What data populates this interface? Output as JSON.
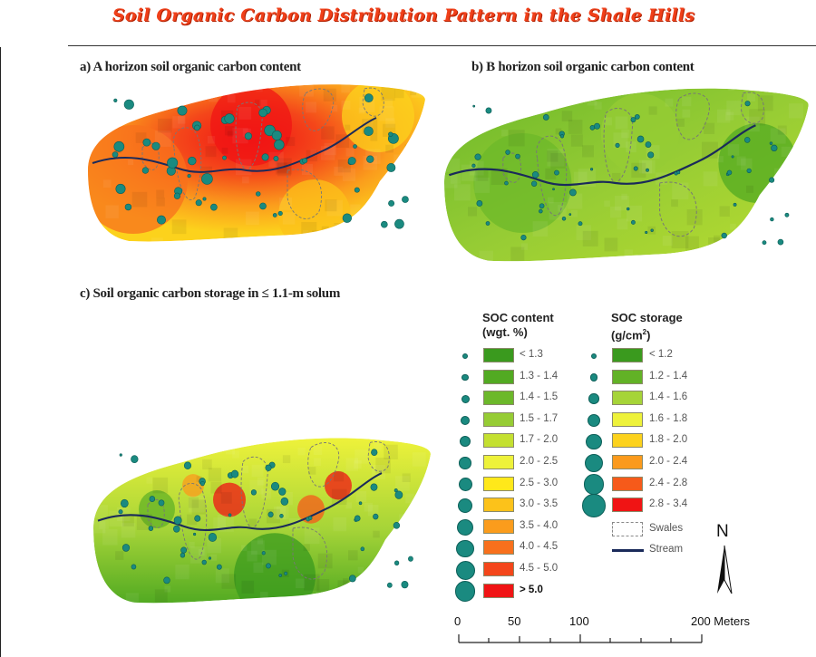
{
  "title": "Soil Organic Carbon Distribution Pattern in the Shale Hills",
  "panels": {
    "a": "a) A horizon soil organic carbon content",
    "b": "b) B horizon soil organic carbon content",
    "c": "c) Soil organic carbon storage in ≤ 1.1-m solum"
  },
  "legend": {
    "content": {
      "title_line1": "SOC content",
      "title_line2": "(wgt. %)",
      "classes": [
        {
          "label": "< 1.3",
          "color": "#3a9a1e"
        },
        {
          "label": "1.3 - 1.4",
          "color": "#52aa22"
        },
        {
          "label": "1.4 - 1.5",
          "color": "#6cb82a"
        },
        {
          "label": "1.5 - 1.7",
          "color": "#96cc34"
        },
        {
          "label": "1.7 - 2.0",
          "color": "#c4e030"
        },
        {
          "label": "2.0 - 2.5",
          "color": "#eef23a"
        },
        {
          "label": "2.5 - 3.0",
          "color": "#ffe81a"
        },
        {
          "label": "3.0 - 3.5",
          "color": "#fcc21a"
        },
        {
          "label": "3.5 - 4.0",
          "color": "#fb9c1c"
        },
        {
          "label": "4.0 - 4.5",
          "color": "#f8701c"
        },
        {
          "label": "4.5 - 5.0",
          "color": "#f4461a"
        },
        {
          "label": "> 5.0",
          "color": "#f01414"
        }
      ]
    },
    "storage": {
      "title_line1": "SOC storage",
      "title_line2": "(g/cm",
      "title_sup": "2",
      "title_end": ")",
      "classes": [
        {
          "label": "< 1.2",
          "color": "#3a9a1e"
        },
        {
          "label": "1.2 - 1.4",
          "color": "#62b226"
        },
        {
          "label": "1.4 - 1.6",
          "color": "#a6d438"
        },
        {
          "label": "1.6 - 1.8",
          "color": "#eef23a"
        },
        {
          "label": "1.8 - 2.0",
          "color": "#fcd21c"
        },
        {
          "label": "2.0 - 2.4",
          "color": "#fb9a1c"
        },
        {
          "label": "2.4 - 2.8",
          "color": "#f65a1a"
        },
        {
          "label": "2.8 - 3.4",
          "color": "#f01414"
        }
      ],
      "swales": "Swales",
      "stream": "Stream"
    }
  },
  "north": "N",
  "scale": {
    "ticks": [
      "0",
      "50",
      "100",
      "200 Meters"
    ]
  },
  "colors": {
    "dot": "#1a8a80",
    "stream": "#1a2a5a",
    "title": "#f0401a"
  }
}
